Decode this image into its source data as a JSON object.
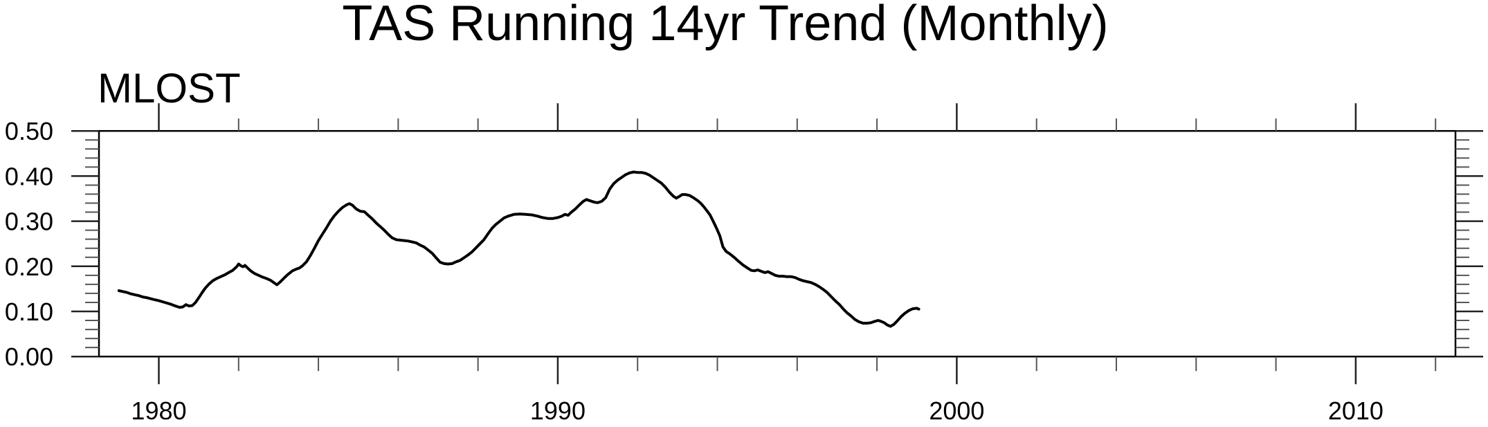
{
  "chart": {
    "title": "TAS Running 14yr Trend (Monthly)",
    "left_string": "MLOST"
  },
  "colors": {
    "background": "#ffffff",
    "line": "#000000",
    "frame": "#000000",
    "major_tick": "#222222",
    "minor_tick": "#555555",
    "text": "#000000"
  },
  "chart_data": {
    "type": "line",
    "title": "TAS Running 14yr Trend (Monthly)",
    "subtitle_left": "MLOST",
    "xlabel": "",
    "ylabel": "",
    "grid": false,
    "legend": "none",
    "xlim": [
      1978.5,
      2012.5
    ],
    "ylim": [
      0.0,
      0.5
    ],
    "x_axis": {
      "major_ticks": [
        1980,
        1990,
        2000,
        2010
      ],
      "major_tick_labels": [
        "1980",
        "1990",
        "2000",
        "2010"
      ],
      "minor_ticks": [
        1982,
        1984,
        1986,
        1988,
        1992,
        1994,
        1996,
        1998,
        2002,
        2004,
        2006,
        2008,
        2012
      ]
    },
    "y_axis": {
      "major_ticks": [
        0.0,
        0.1,
        0.2,
        0.3,
        0.4,
        0.5
      ],
      "major_tick_labels": [
        "0.00",
        "0.10",
        "0.20",
        "0.30",
        "0.40",
        "0.50"
      ],
      "minor_step": 0.02
    },
    "series": [
      {
        "name": "MLOST",
        "color": "#000000",
        "points": [
          [
            1979.0,
            0.146
          ],
          [
            1979.1,
            0.144
          ],
          [
            1979.2,
            0.142
          ],
          [
            1979.3,
            0.139
          ],
          [
            1979.4,
            0.137
          ],
          [
            1979.5,
            0.135
          ],
          [
            1979.6,
            0.132
          ],
          [
            1979.72,
            0.13
          ],
          [
            1979.85,
            0.127
          ],
          [
            1980.0,
            0.124
          ],
          [
            1980.15,
            0.12
          ],
          [
            1980.3,
            0.116
          ],
          [
            1980.42,
            0.112
          ],
          [
            1980.52,
            0.109
          ],
          [
            1980.6,
            0.11
          ],
          [
            1980.68,
            0.115
          ],
          [
            1980.76,
            0.112
          ],
          [
            1980.84,
            0.113
          ],
          [
            1980.92,
            0.12
          ],
          [
            1981.0,
            0.13
          ],
          [
            1981.08,
            0.141
          ],
          [
            1981.16,
            0.151
          ],
          [
            1981.25,
            0.16
          ],
          [
            1981.35,
            0.168
          ],
          [
            1981.45,
            0.173
          ],
          [
            1981.55,
            0.177
          ],
          [
            1981.65,
            0.181
          ],
          [
            1981.75,
            0.186
          ],
          [
            1981.85,
            0.191
          ],
          [
            1981.95,
            0.199
          ],
          [
            1982.0,
            0.205
          ],
          [
            1982.06,
            0.201
          ],
          [
            1982.11,
            0.199
          ],
          [
            1982.16,
            0.202
          ],
          [
            1982.23,
            0.196
          ],
          [
            1982.3,
            0.19
          ],
          [
            1982.4,
            0.184
          ],
          [
            1982.5,
            0.18
          ],
          [
            1982.6,
            0.176
          ],
          [
            1982.7,
            0.173
          ],
          [
            1982.8,
            0.169
          ],
          [
            1982.88,
            0.164
          ],
          [
            1982.96,
            0.159
          ],
          [
            1983.05,
            0.166
          ],
          [
            1983.15,
            0.175
          ],
          [
            1983.25,
            0.183
          ],
          [
            1983.35,
            0.19
          ],
          [
            1983.45,
            0.194
          ],
          [
            1983.52,
            0.196
          ],
          [
            1983.6,
            0.201
          ],
          [
            1983.7,
            0.21
          ],
          [
            1983.8,
            0.224
          ],
          [
            1983.9,
            0.24
          ],
          [
            1984.0,
            0.257
          ],
          [
            1984.1,
            0.271
          ],
          [
            1984.2,
            0.285
          ],
          [
            1984.3,
            0.3
          ],
          [
            1984.4,
            0.312
          ],
          [
            1984.5,
            0.322
          ],
          [
            1984.6,
            0.33
          ],
          [
            1984.7,
            0.336
          ],
          [
            1984.78,
            0.339
          ],
          [
            1984.86,
            0.335
          ],
          [
            1984.95,
            0.327
          ],
          [
            1985.05,
            0.322
          ],
          [
            1985.15,
            0.321
          ],
          [
            1985.25,
            0.313
          ],
          [
            1985.35,
            0.305
          ],
          [
            1985.45,
            0.296
          ],
          [
            1985.55,
            0.288
          ],
          [
            1985.65,
            0.28
          ],
          [
            1985.75,
            0.271
          ],
          [
            1985.85,
            0.263
          ],
          [
            1985.95,
            0.259
          ],
          [
            1986.05,
            0.258
          ],
          [
            1986.15,
            0.257
          ],
          [
            1986.25,
            0.256
          ],
          [
            1986.35,
            0.254
          ],
          [
            1986.45,
            0.252
          ],
          [
            1986.55,
            0.247
          ],
          [
            1986.65,
            0.243
          ],
          [
            1986.75,
            0.236
          ],
          [
            1986.85,
            0.229
          ],
          [
            1986.95,
            0.219
          ],
          [
            1987.05,
            0.209
          ],
          [
            1987.15,
            0.206
          ],
          [
            1987.25,
            0.205
          ],
          [
            1987.35,
            0.206
          ],
          [
            1987.45,
            0.21
          ],
          [
            1987.55,
            0.213
          ],
          [
            1987.65,
            0.219
          ],
          [
            1987.75,
            0.225
          ],
          [
            1987.85,
            0.232
          ],
          [
            1987.95,
            0.241
          ],
          [
            1988.05,
            0.25
          ],
          [
            1988.15,
            0.259
          ],
          [
            1988.25,
            0.272
          ],
          [
            1988.35,
            0.284
          ],
          [
            1988.45,
            0.293
          ],
          [
            1988.55,
            0.3
          ],
          [
            1988.65,
            0.307
          ],
          [
            1988.75,
            0.311
          ],
          [
            1988.9,
            0.315
          ],
          [
            1989.05,
            0.316
          ],
          [
            1989.2,
            0.315
          ],
          [
            1989.35,
            0.314
          ],
          [
            1989.5,
            0.311
          ],
          [
            1989.62,
            0.308
          ],
          [
            1989.75,
            0.306
          ],
          [
            1989.88,
            0.306
          ],
          [
            1990.0,
            0.308
          ],
          [
            1990.1,
            0.311
          ],
          [
            1990.18,
            0.315
          ],
          [
            1990.26,
            0.313
          ],
          [
            1990.34,
            0.32
          ],
          [
            1990.44,
            0.327
          ],
          [
            1990.54,
            0.336
          ],
          [
            1990.64,
            0.344
          ],
          [
            1990.72,
            0.348
          ],
          [
            1990.82,
            0.345
          ],
          [
            1990.92,
            0.342
          ],
          [
            1991.0,
            0.341
          ],
          [
            1991.1,
            0.344
          ],
          [
            1991.2,
            0.352
          ],
          [
            1991.3,
            0.371
          ],
          [
            1991.4,
            0.383
          ],
          [
            1991.5,
            0.391
          ],
          [
            1991.6,
            0.397
          ],
          [
            1991.7,
            0.403
          ],
          [
            1991.8,
            0.407
          ],
          [
            1991.9,
            0.409
          ],
          [
            1992.0,
            0.408
          ],
          [
            1992.1,
            0.408
          ],
          [
            1992.2,
            0.406
          ],
          [
            1992.3,
            0.402
          ],
          [
            1992.4,
            0.396
          ],
          [
            1992.5,
            0.39
          ],
          [
            1992.6,
            0.384
          ],
          [
            1992.7,
            0.375
          ],
          [
            1992.8,
            0.364
          ],
          [
            1992.9,
            0.355
          ],
          [
            1992.97,
            0.351
          ],
          [
            1993.05,
            0.355
          ],
          [
            1993.12,
            0.359
          ],
          [
            1993.2,
            0.359
          ],
          [
            1993.3,
            0.357
          ],
          [
            1993.4,
            0.352
          ],
          [
            1993.5,
            0.346
          ],
          [
            1993.58,
            0.34
          ],
          [
            1993.66,
            0.332
          ],
          [
            1993.74,
            0.323
          ],
          [
            1993.82,
            0.313
          ],
          [
            1993.9,
            0.299
          ],
          [
            1993.98,
            0.284
          ],
          [
            1994.06,
            0.268
          ],
          [
            1994.14,
            0.243
          ],
          [
            1994.22,
            0.233
          ],
          [
            1994.32,
            0.227
          ],
          [
            1994.42,
            0.22
          ],
          [
            1994.52,
            0.212
          ],
          [
            1994.64,
            0.203
          ],
          [
            1994.76,
            0.196
          ],
          [
            1994.85,
            0.191
          ],
          [
            1994.93,
            0.19
          ],
          [
            1995.01,
            0.192
          ],
          [
            1995.1,
            0.189
          ],
          [
            1995.19,
            0.186
          ],
          [
            1995.27,
            0.188
          ],
          [
            1995.36,
            0.184
          ],
          [
            1995.45,
            0.18
          ],
          [
            1995.54,
            0.178
          ],
          [
            1995.65,
            0.178
          ],
          [
            1995.75,
            0.177
          ],
          [
            1995.85,
            0.177
          ],
          [
            1995.95,
            0.175
          ],
          [
            1996.05,
            0.171
          ],
          [
            1996.15,
            0.168
          ],
          [
            1996.25,
            0.166
          ],
          [
            1996.35,
            0.164
          ],
          [
            1996.45,
            0.16
          ],
          [
            1996.55,
            0.155
          ],
          [
            1996.65,
            0.149
          ],
          [
            1996.75,
            0.142
          ],
          [
            1996.85,
            0.133
          ],
          [
            1996.95,
            0.124
          ],
          [
            1997.05,
            0.116
          ],
          [
            1997.15,
            0.106
          ],
          [
            1997.25,
            0.097
          ],
          [
            1997.35,
            0.09
          ],
          [
            1997.45,
            0.082
          ],
          [
            1997.55,
            0.077
          ],
          [
            1997.65,
            0.074
          ],
          [
            1997.75,
            0.074
          ],
          [
            1997.85,
            0.075
          ],
          [
            1997.95,
            0.078
          ],
          [
            1998.03,
            0.08
          ],
          [
            1998.1,
            0.078
          ],
          [
            1998.18,
            0.075
          ],
          [
            1998.26,
            0.07
          ],
          [
            1998.34,
            0.067
          ],
          [
            1998.42,
            0.071
          ],
          [
            1998.5,
            0.078
          ],
          [
            1998.6,
            0.088
          ],
          [
            1998.7,
            0.096
          ],
          [
            1998.8,
            0.102
          ],
          [
            1998.9,
            0.106
          ],
          [
            1999.0,
            0.107
          ],
          [
            1999.05,
            0.105
          ]
        ]
      }
    ]
  }
}
